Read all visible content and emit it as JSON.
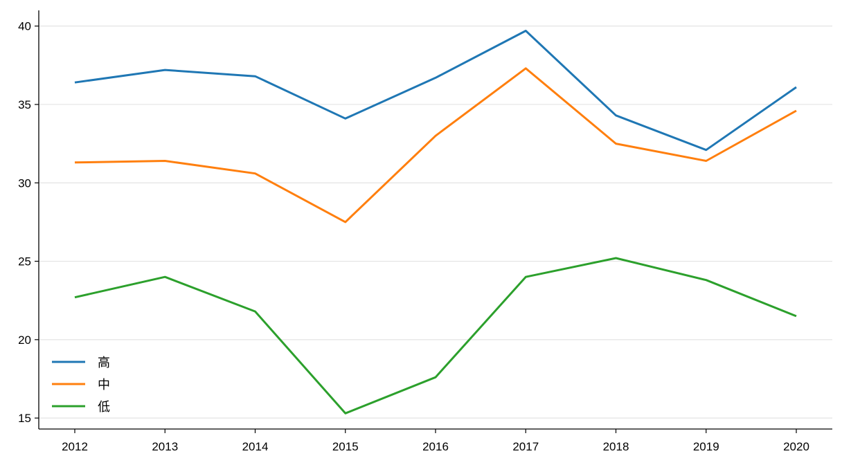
{
  "chart_data": {
    "type": "line",
    "title": "",
    "xlabel": "",
    "ylabel": "",
    "x": [
      "2012",
      "2013",
      "2014",
      "2015",
      "2016",
      "2017",
      "2018",
      "2019",
      "2020"
    ],
    "ylim": [
      14.3,
      41
    ],
    "yticks": [
      15,
      20,
      25,
      30,
      35,
      40
    ],
    "grid": {
      "horizontal": true,
      "vertical": false
    },
    "legend": {
      "placement": "lower-left"
    },
    "series": [
      {
        "name": "高",
        "color": "#1f77b4",
        "values": [
          36.4,
          37.2,
          36.8,
          34.1,
          36.7,
          39.7,
          34.3,
          32.1,
          36.1
        ]
      },
      {
        "name": "中",
        "color": "#ff7f0e",
        "values": [
          31.3,
          31.4,
          30.6,
          27.5,
          33.0,
          37.3,
          32.5,
          31.4,
          34.6
        ]
      },
      {
        "name": "低",
        "color": "#2ca02c",
        "values": [
          22.7,
          24.0,
          21.8,
          15.3,
          17.6,
          24.0,
          25.2,
          23.8,
          21.5
        ]
      }
    ]
  }
}
